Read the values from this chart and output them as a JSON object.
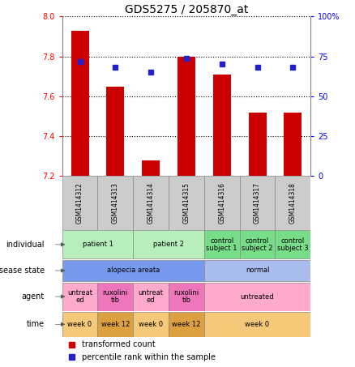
{
  "title": "GDS5275 / 205870_at",
  "samples": [
    "GSM1414312",
    "GSM1414313",
    "GSM1414314",
    "GSM1414315",
    "GSM1414316",
    "GSM1414317",
    "GSM1414318"
  ],
  "bar_values": [
    7.93,
    7.65,
    7.28,
    7.8,
    7.71,
    7.52,
    7.52
  ],
  "dot_values": [
    72,
    68,
    65,
    74,
    70,
    68,
    68
  ],
  "ylim_left": [
    7.2,
    8.0
  ],
  "ylim_right": [
    0,
    100
  ],
  "yticks_left": [
    7.2,
    7.4,
    7.6,
    7.8,
    8.0
  ],
  "yticks_right": [
    0,
    25,
    50,
    75,
    100
  ],
  "ytick_labels_right": [
    "0",
    "25",
    "50",
    "75",
    "100%"
  ],
  "bar_color": "#cc0000",
  "dot_color": "#2222cc",
  "bar_bottom": 7.2,
  "rows": {
    "individual": {
      "label": "individual",
      "cells": [
        {
          "text": "patient 1",
          "span": [
            0,
            1
          ],
          "color": "#b8eebb"
        },
        {
          "text": "patient 2",
          "span": [
            2,
            3
          ],
          "color": "#b8eebb"
        },
        {
          "text": "control\nsubject 1",
          "span": [
            4,
            4
          ],
          "color": "#77dd88"
        },
        {
          "text": "control\nsubject 2",
          "span": [
            5,
            5
          ],
          "color": "#77dd88"
        },
        {
          "text": "control\nsubject 3",
          "span": [
            6,
            6
          ],
          "color": "#77dd88"
        }
      ]
    },
    "disease_state": {
      "label": "disease state",
      "cells": [
        {
          "text": "alopecia areata",
          "span": [
            0,
            3
          ],
          "color": "#7799ee"
        },
        {
          "text": "normal",
          "span": [
            4,
            6
          ],
          "color": "#aabbee"
        }
      ]
    },
    "agent": {
      "label": "agent",
      "cells": [
        {
          "text": "untreat\ned",
          "span": [
            0,
            0
          ],
          "color": "#ffaacc"
        },
        {
          "text": "ruxolini\ntib",
          "span": [
            1,
            1
          ],
          "color": "#ee77bb"
        },
        {
          "text": "untreat\ned",
          "span": [
            2,
            2
          ],
          "color": "#ffaacc"
        },
        {
          "text": "ruxolini\ntib",
          "span": [
            3,
            3
          ],
          "color": "#ee77bb"
        },
        {
          "text": "untreated",
          "span": [
            4,
            6
          ],
          "color": "#ffaacc"
        }
      ]
    },
    "time": {
      "label": "time",
      "cells": [
        {
          "text": "week 0",
          "span": [
            0,
            0
          ],
          "color": "#f5c87a"
        },
        {
          "text": "week 12",
          "span": [
            1,
            1
          ],
          "color": "#dda040"
        },
        {
          "text": "week 0",
          "span": [
            2,
            2
          ],
          "color": "#f5c87a"
        },
        {
          "text": "week 12",
          "span": [
            3,
            3
          ],
          "color": "#dda040"
        },
        {
          "text": "week 0",
          "span": [
            4,
            6
          ],
          "color": "#f5c87a"
        }
      ]
    }
  },
  "legend": [
    {
      "color": "#cc0000",
      "label": "transformed count"
    },
    {
      "color": "#2222cc",
      "label": "percentile rank within the sample"
    }
  ],
  "row_order": [
    "individual",
    "disease_state",
    "agent",
    "time"
  ]
}
